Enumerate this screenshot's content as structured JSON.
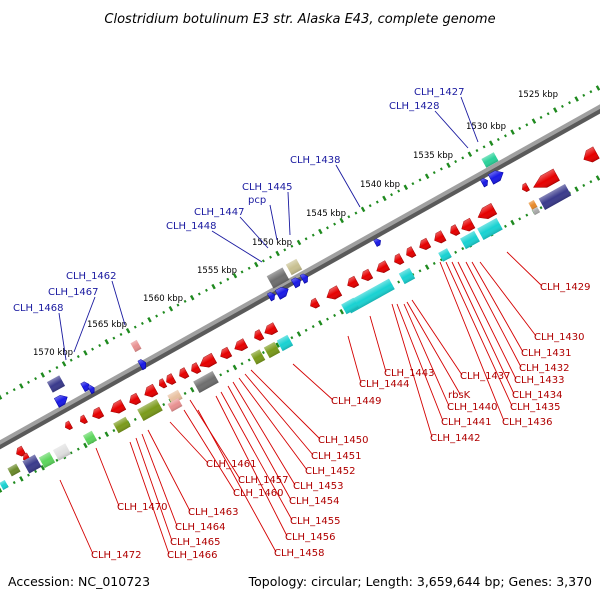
{
  "title": "Clostridium botulinum E3 str. Alaska E43, complete genome",
  "footer": {
    "accession": "Accession: NC_010723",
    "summary": "Topology: circular; Length: 3,659,644 bp; Genes: 3,370"
  },
  "ruler": {
    "ticks": [
      "1525 kbp",
      "1530 kbp",
      "1535 kbp",
      "1540 kbp",
      "1545 kbp",
      "1550 kbp",
      "1555 kbp",
      "1560 kbp",
      "1565 kbp",
      "1570 kbp"
    ]
  },
  "blue_labels": [
    "CLH_1427",
    "CLH_1428",
    "CLH_1438",
    "CLH_1445",
    "pcp",
    "CLH_1447",
    "CLH_1448",
    "CLH_1462",
    "CLH_1467",
    "CLH_1468"
  ],
  "red_labels": [
    "CLH_1429",
    "CLH_1430",
    "CLH_1431",
    "CLH_1432",
    "CLH_1433",
    "CLH_1434",
    "CLH_1435",
    "CLH_1436",
    "CLH_1437",
    "rbsK",
    "CLH_1440",
    "CLH_1441",
    "CLH_1442",
    "CLH_1443",
    "CLH_1444",
    "CLH_1449",
    "CLH_1450",
    "CLH_1451",
    "CLH_1452",
    "CLH_1453",
    "CLH_1454",
    "CLH_1455",
    "CLH_1456",
    "CLH_1457",
    "CLH_1458",
    "CLH_1460",
    "CLH_1461",
    "CLH_1463",
    "CLH_1464",
    "CLH_1465",
    "CLH_1466",
    "CLH_1470",
    "CLH_1472"
  ],
  "colors": {
    "backbone": "#8c8c8c",
    "ruler_dot": "#1f8a1f",
    "forward_gene": "#1a1ae6",
    "reverse_gene": "#e60000",
    "blue_text": "#1a1aa0",
    "red_text": "#b00000",
    "cyan_gene": "#19d2d2",
    "olive_gene": "#7a9a1a",
    "gray_gene": "#6e6e6e",
    "navy_gene": "#3a3a8c"
  }
}
